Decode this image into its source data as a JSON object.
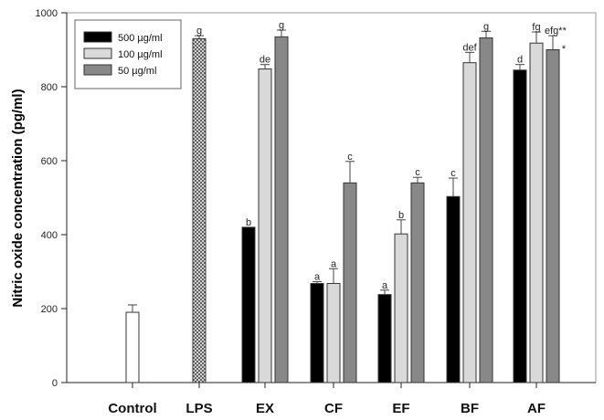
{
  "chart_data": {
    "type": "bar",
    "ylabel": "Nitric oxide concentration (pg/ml)",
    "xlabel": "",
    "ylim": [
      0,
      1000
    ],
    "yticks": [
      "0",
      "200",
      "400",
      "600",
      "800",
      "1000"
    ],
    "legend_position": "top-left",
    "legend": [
      "500 µg/ml",
      "100 µg/ml",
      "50 µg/ml"
    ],
    "colors": {
      "500": "#000000",
      "100": "#d9d9d9",
      "50": "#888888",
      "control": "#ffffff",
      "lps": "crosshatch"
    },
    "categories": [
      "Control",
      "LPS",
      "EX",
      "CF",
      "EF",
      "BF",
      "AF"
    ],
    "single": [
      {
        "category": "Control",
        "value": 190,
        "error": 20,
        "label": ""
      },
      {
        "category": "LPS",
        "value": 930,
        "error": 8,
        "label": "g"
      }
    ],
    "series": [
      {
        "name": "500 µg/ml",
        "values": [
          null,
          null,
          420,
          268,
          238,
          503,
          845
        ],
        "errors": [
          null,
          null,
          0,
          5,
          12,
          50,
          15
        ],
        "labels": [
          "",
          "",
          "b",
          "a",
          "a",
          "c",
          "d"
        ]
      },
      {
        "name": "100 µg/ml",
        "values": [
          null,
          null,
          848,
          268,
          402,
          865,
          918
        ],
        "errors": [
          null,
          null,
          12,
          40,
          38,
          28,
          30
        ],
        "labels": [
          "",
          "",
          "de",
          "a",
          "b",
          "def",
          "fg"
        ]
      },
      {
        "name": "50 µg/ml",
        "values": [
          null,
          null,
          935,
          540,
          540,
          932,
          900
        ],
        "errors": [
          null,
          null,
          18,
          58,
          15,
          18,
          38
        ],
        "labels": [
          "",
          "",
          "g",
          "c",
          "c",
          "g",
          "efg**"
        ]
      }
    ],
    "annotations": [
      "*"
    ]
  }
}
